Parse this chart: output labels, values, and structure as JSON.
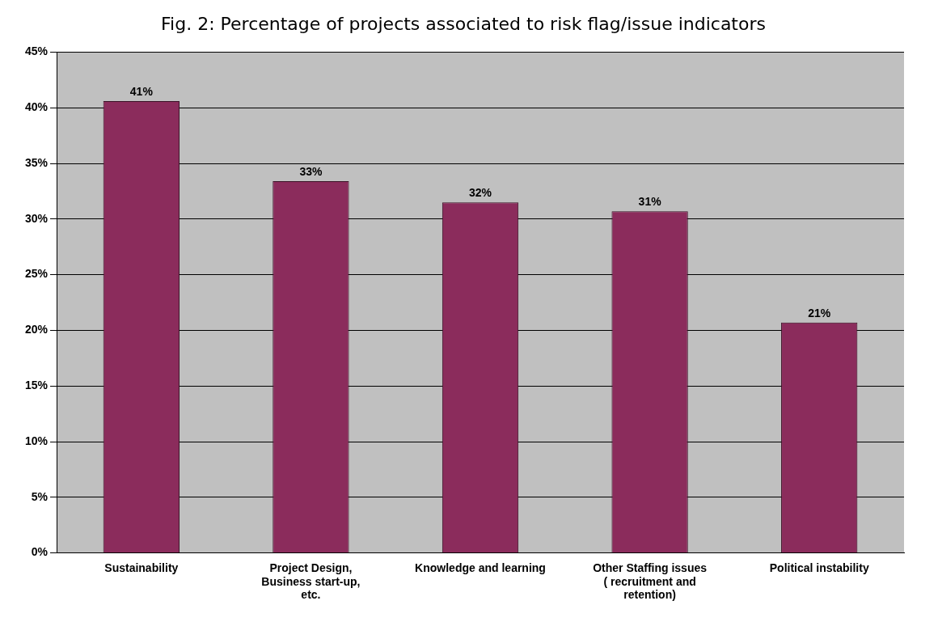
{
  "chart_data": {
    "type": "bar",
    "title": "Fig. 2: Percentage of projects associated to risk flag/issue indicators",
    "categories": [
      "Sustainability",
      "Project Design, Business start-up, etc.",
      "Knowledge and learning",
      "Other Staffing issues ( recruitment and retention)",
      "Political instability"
    ],
    "values": [
      40.6,
      33.4,
      31.5,
      30.7,
      20.7
    ],
    "value_labels": [
      "41%",
      "33%",
      "32%",
      "31%",
      "21%"
    ],
    "color": "#8b2c5c",
    "ylim": [
      0,
      45
    ],
    "yticks": [
      {
        "value": 0,
        "label": "0%"
      },
      {
        "value": 5,
        "label": "5%"
      },
      {
        "value": 10,
        "label": "10%"
      },
      {
        "value": 15,
        "label": "15%"
      },
      {
        "value": 20,
        "label": "20%"
      },
      {
        "value": 25,
        "label": "25%"
      },
      {
        "value": 30,
        "label": "30%"
      },
      {
        "value": 35,
        "label": "35%"
      },
      {
        "value": 40,
        "label": "40%"
      },
      {
        "value": 45,
        "label": "45%"
      }
    ],
    "grid": "y",
    "legend": false
  }
}
